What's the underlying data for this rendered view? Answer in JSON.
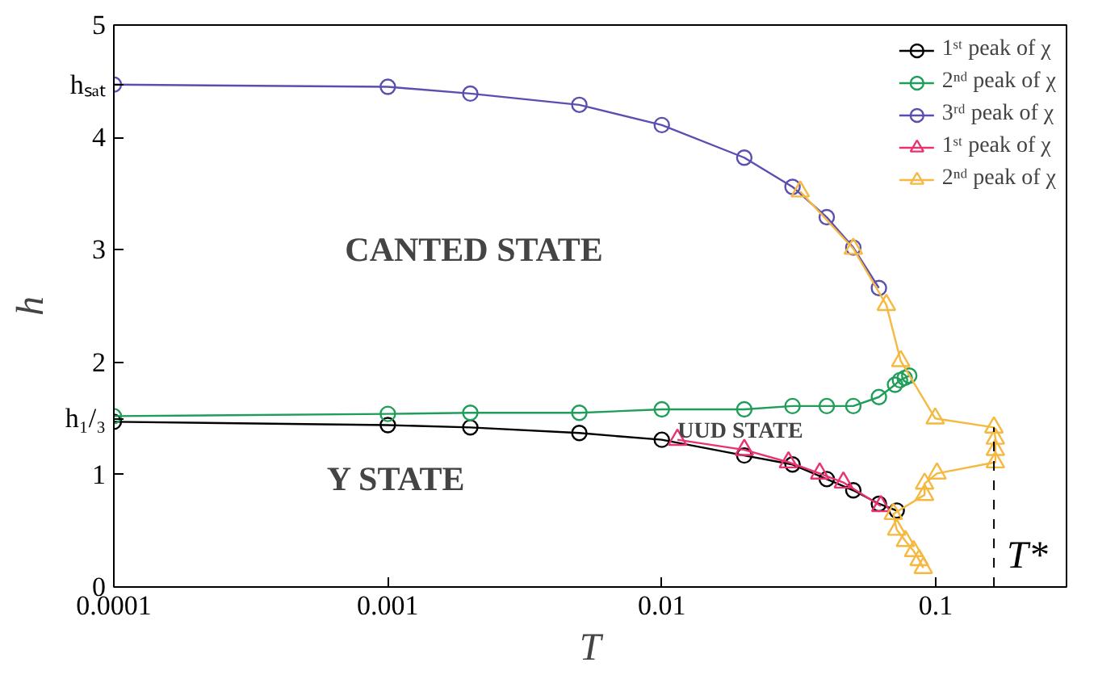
{
  "chart_data": {
    "type": "line",
    "xlabel": "T",
    "ylabel": "h",
    "log": "x",
    "xlim": [
      0.0001,
      0.3
    ],
    "ylim": [
      0,
      5
    ],
    "xticks": [
      0.0001,
      0.001,
      0.01,
      0.1
    ],
    "yticks": [
      0,
      1,
      2,
      3,
      4,
      5,
      {
        "value": 4.47,
        "label": "hₛₐₜ"
      },
      {
        "value": 1.5,
        "label": "h₁/₃"
      }
    ],
    "grid": false,
    "legend": "top right",
    "series": [
      {
        "name": "1ˢᵗ peak of χ",
        "color": "#000000",
        "marker": "circle",
        "x": [
          0.0001,
          0.001,
          0.002,
          0.005,
          0.01,
          0.02,
          0.03,
          0.04,
          0.05,
          0.062,
          0.072
        ],
        "values": [
          1.47,
          1.44,
          1.42,
          1.37,
          1.31,
          1.17,
          1.09,
          0.96,
          0.86,
          0.74,
          0.68
        ]
      },
      {
        "name": "2ⁿᵈ peak of χ",
        "color": "#1f9e5a",
        "marker": "circle",
        "x": [
          0.0001,
          0.001,
          0.002,
          0.005,
          0.01,
          0.02,
          0.03,
          0.04,
          0.05,
          0.062,
          0.071,
          0.074,
          0.077,
          0.08
        ],
        "values": [
          1.52,
          1.54,
          1.55,
          1.55,
          1.58,
          1.58,
          1.61,
          1.61,
          1.61,
          1.69,
          1.8,
          1.84,
          1.86,
          1.88
        ]
      },
      {
        "name": "3ʳᵈ peak of χ",
        "color": "#5a4fb0",
        "marker": "circle",
        "x": [
          0.0001,
          0.001,
          0.002,
          0.005,
          0.01,
          0.02,
          0.03,
          0.04,
          0.05,
          0.062
        ],
        "values": [
          4.47,
          4.45,
          4.39,
          4.29,
          4.11,
          3.82,
          3.56,
          3.29,
          3.02,
          2.66
        ]
      },
      {
        "name": "1ˢᵗ peak of χ",
        "color": "#e8336e",
        "marker": "triangle",
        "x": [
          0.0114,
          0.02,
          0.029,
          0.0377,
          0.046,
          0.063
        ],
        "values": [
          1.31,
          1.22,
          1.11,
          1.01,
          0.93,
          0.72
        ]
      },
      {
        "name": "2ⁿᵈ peak of χ",
        "color": "#f5b942",
        "marker": "triangle",
        "x": [
          0.032,
          0.05,
          0.066,
          0.0745,
          0.0995,
          0.163,
          0.165,
          0.165,
          0.165,
          0.101,
          0.091,
          0.091,
          0.07,
          0.072,
          0.0775,
          0.083,
          0.087,
          0.09
        ],
        "values": [
          3.52,
          3.01,
          2.51,
          2.01,
          1.5,
          1.42,
          1.32,
          1.22,
          1.11,
          1.01,
          0.92,
          0.82,
          0.65,
          0.51,
          0.41,
          0.32,
          0.24,
          0.17
        ]
      }
    ],
    "ref_lines": [
      {
        "axis": "x",
        "value": 0.163,
        "label": "T*",
        "line_style": "dashed",
        "color": "#000000"
      }
    ],
    "annotations": [
      "CANTED STATE",
      "Y STATE",
      "UUD STATE"
    ]
  }
}
